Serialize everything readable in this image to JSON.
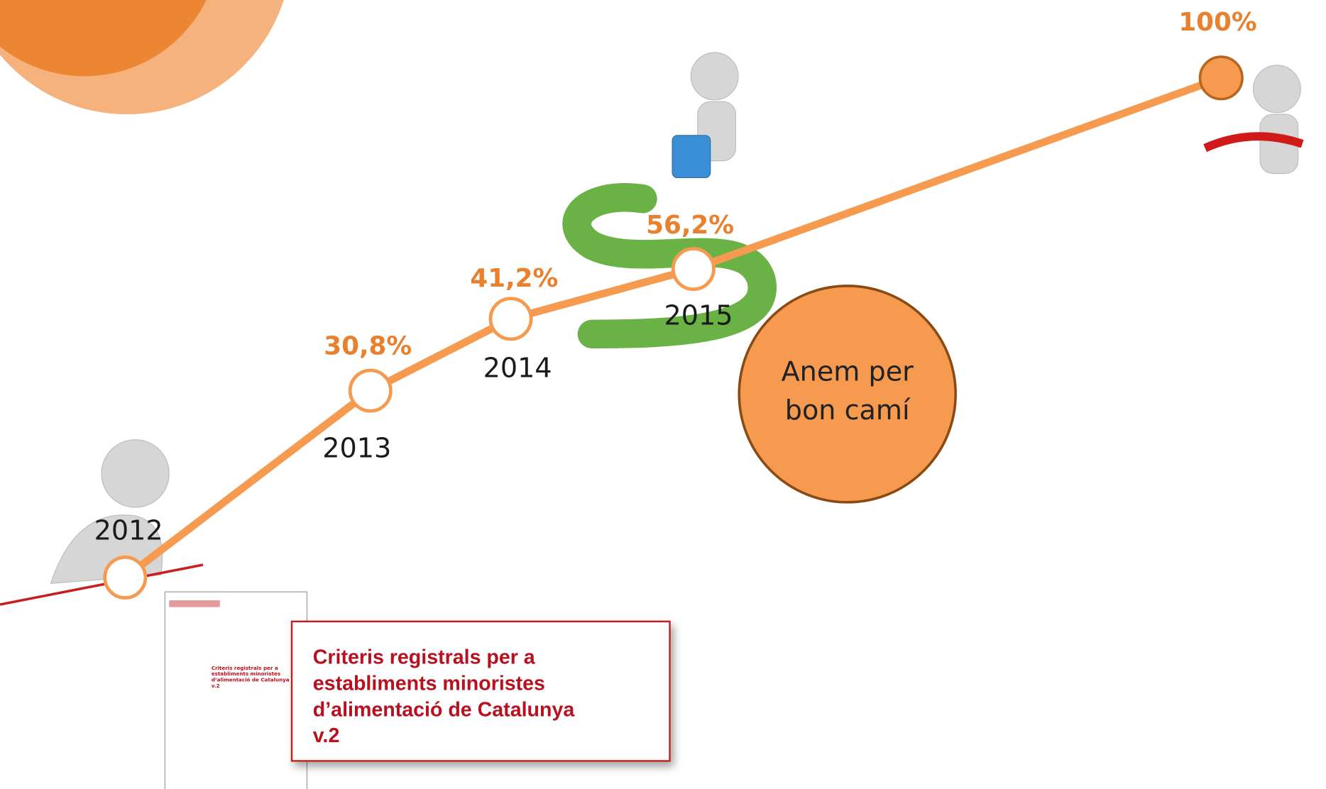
{
  "milestones": [
    {
      "year": "2012"
    },
    {
      "year": "2013",
      "value": "30,8%"
    },
    {
      "year": "2014",
      "value": "41,2%"
    },
    {
      "year": "2015",
      "value": "56,2%"
    }
  ],
  "goal": "100%",
  "callout": {
    "lines": [
      "Anem per",
      "bon camí"
    ]
  },
  "document": {
    "title_lines": [
      "Criteris registrals per a",
      "establiments minoristes",
      "d’alimentació de Catalunya",
      "v.2"
    ]
  }
}
